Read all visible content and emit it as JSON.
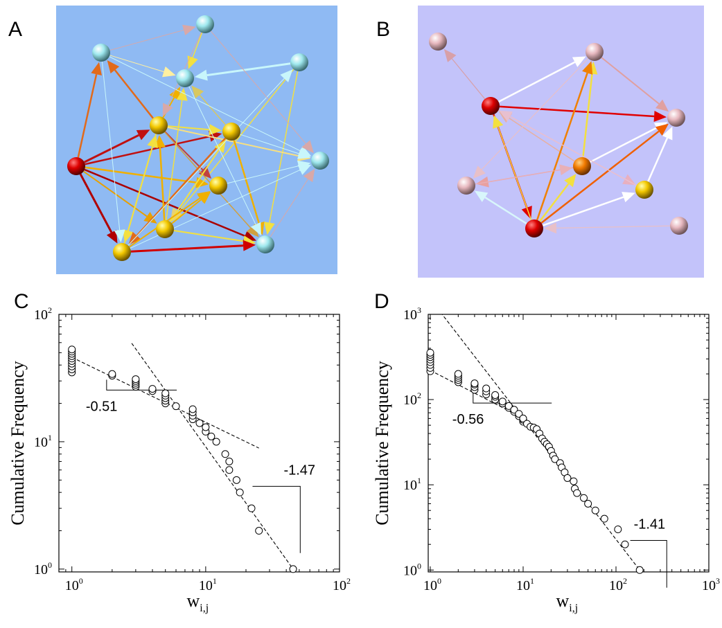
{
  "panels": {
    "a": {
      "letter": "A",
      "background": "#8fbaf3"
    },
    "b": {
      "letter": "B",
      "background": "#c3c3fa"
    },
    "c": {
      "letter": "C"
    },
    "d": {
      "letter": "D"
    }
  },
  "colors": {
    "red": "#cc0000",
    "orange": "#f07a00",
    "gold": "#f3c800",
    "cyan": "#9fe8ee",
    "pink": "#e7b8bf"
  },
  "networks": [
    {
      "id": "A",
      "nodes": [
        {
          "id": 0,
          "color": "red"
        },
        {
          "id": 1,
          "color": "cyan"
        },
        {
          "id": 2,
          "color": "cyan"
        },
        {
          "id": 3,
          "color": "cyan"
        },
        {
          "id": 4,
          "color": "cyan"
        },
        {
          "id": 5,
          "color": "gold"
        },
        {
          "id": 6,
          "color": "gold"
        },
        {
          "id": 7,
          "color": "cyan"
        },
        {
          "id": 8,
          "color": "gold"
        },
        {
          "id": 9,
          "color": "gold"
        },
        {
          "id": 10,
          "color": "gold"
        },
        {
          "id": 11,
          "color": "cyan"
        }
      ]
    },
    {
      "id": "B",
      "nodes": [
        {
          "id": 0,
          "color": "pink"
        },
        {
          "id": 1,
          "color": "pink"
        },
        {
          "id": 2,
          "color": "red"
        },
        {
          "id": 3,
          "color": "pink"
        },
        {
          "id": 4,
          "color": "orange"
        },
        {
          "id": 5,
          "color": "pink"
        },
        {
          "id": 6,
          "color": "gold"
        },
        {
          "id": 7,
          "color": "red"
        },
        {
          "id": 8,
          "color": "pink"
        }
      ]
    }
  ],
  "chart_data": [
    {
      "id": "C",
      "type": "scatter",
      "xlabel_main": "w",
      "xlabel_sub": "i,j",
      "ylabel": "Cumulative Frequency",
      "xscale": "log",
      "yscale": "log",
      "xlim": [
        0.8,
        100
      ],
      "ylim": [
        0.95,
        100
      ],
      "xticks": [
        {
          "base": "10",
          "exp": "0"
        },
        {
          "base": "10",
          "exp": "1"
        },
        {
          "base": "10",
          "exp": "2"
        }
      ],
      "yticks": [
        {
          "base": "10",
          "exp": "0"
        },
        {
          "base": "10",
          "exp": "1"
        },
        {
          "base": "10",
          "exp": "2"
        }
      ],
      "points": [
        [
          1,
          35
        ],
        [
          1,
          37
        ],
        [
          1,
          39
        ],
        [
          1,
          41
        ],
        [
          1,
          43
        ],
        [
          1,
          45
        ],
        [
          1,
          47
        ],
        [
          1,
          49
        ],
        [
          1,
          51
        ],
        [
          1,
          53
        ],
        [
          2,
          33
        ],
        [
          2,
          34
        ],
        [
          3,
          27
        ],
        [
          3,
          28
        ],
        [
          3,
          29
        ],
        [
          3,
          30
        ],
        [
          3,
          31
        ],
        [
          4,
          25
        ],
        [
          4,
          26
        ],
        [
          5,
          20
        ],
        [
          5,
          21
        ],
        [
          5,
          22
        ],
        [
          5,
          23
        ],
        [
          5,
          24
        ],
        [
          6,
          19
        ],
        [
          8,
          15
        ],
        [
          8,
          16
        ],
        [
          8,
          17
        ],
        [
          8,
          18
        ],
        [
          9,
          14
        ],
        [
          10,
          12
        ],
        [
          10,
          13
        ],
        [
          11,
          11
        ],
        [
          12,
          10
        ],
        [
          14,
          8
        ],
        [
          15,
          7
        ],
        [
          15,
          6
        ],
        [
          17,
          5
        ],
        [
          18,
          4
        ],
        [
          22,
          3
        ],
        [
          25,
          2
        ],
        [
          45,
          1
        ]
      ],
      "fit_lines": [
        {
          "slope": -0.51,
          "label": "-0.51",
          "x_range": [
            1,
            25
          ],
          "anchor": [
            1,
            46
          ]
        },
        {
          "slope": -1.47,
          "label": "-1.47",
          "x_range": [
            2.8,
            45
          ],
          "anchor": [
            45,
            1
          ]
        }
      ]
    },
    {
      "id": "D",
      "type": "scatter",
      "xlabel_main": "w",
      "xlabel_sub": "i,j",
      "ylabel": "Cumulative Frequency",
      "xscale": "log",
      "yscale": "log",
      "xlim": [
        0.95,
        1000
      ],
      "ylim": [
        0.95,
        1000
      ],
      "xticks": [
        {
          "base": "10",
          "exp": "0"
        },
        {
          "base": "10",
          "exp": "1"
        },
        {
          "base": "10",
          "exp": "2"
        },
        {
          "base": "10",
          "exp": "3"
        }
      ],
      "yticks": [
        {
          "base": "10",
          "exp": "0"
        },
        {
          "base": "10",
          "exp": "1"
        },
        {
          "base": "10",
          "exp": "2"
        },
        {
          "base": "10",
          "exp": "3"
        }
      ],
      "points": [
        [
          1,
          215
        ],
        [
          1,
          235
        ],
        [
          1,
          255
        ],
        [
          1,
          275
        ],
        [
          1,
          295
        ],
        [
          1,
          315
        ],
        [
          1,
          335
        ],
        [
          1,
          355
        ],
        [
          2,
          160
        ],
        [
          2,
          170
        ],
        [
          2,
          180
        ],
        [
          2,
          190
        ],
        [
          2,
          200
        ],
        [
          3,
          130
        ],
        [
          3,
          140
        ],
        [
          3,
          150
        ],
        [
          3,
          155
        ],
        [
          4,
          115
        ],
        [
          4,
          125
        ],
        [
          4,
          135
        ],
        [
          5,
          100
        ],
        [
          5,
          108
        ],
        [
          5,
          113
        ],
        [
          6,
          90
        ],
        [
          6,
          95
        ],
        [
          7,
          80
        ],
        [
          7,
          84
        ],
        [
          8,
          72
        ],
        [
          8,
          76
        ],
        [
          9,
          64
        ],
        [
          9,
          68
        ],
        [
          10,
          55
        ],
        [
          10,
          58
        ],
        [
          10,
          60
        ],
        [
          11,
          52
        ],
        [
          12,
          48
        ],
        [
          13,
          47
        ],
        [
          14,
          45
        ],
        [
          15,
          40
        ],
        [
          16,
          35
        ],
        [
          17,
          32
        ],
        [
          18,
          30
        ],
        [
          19,
          28
        ],
        [
          20,
          25
        ],
        [
          21,
          22
        ],
        [
          22,
          20
        ],
        [
          25,
          18
        ],
        [
          26,
          16
        ],
        [
          28,
          14
        ],
        [
          30,
          12
        ],
        [
          35,
          11
        ],
        [
          36,
          9
        ],
        [
          38,
          8
        ],
        [
          45,
          7
        ],
        [
          50,
          6
        ],
        [
          60,
          5
        ],
        [
          75,
          4
        ],
        [
          105,
          3
        ],
        [
          125,
          2
        ],
        [
          180,
          1
        ]
      ],
      "fit_lines": [
        {
          "slope": -0.56,
          "label": "-0.56",
          "x_range": [
            1,
            9
          ],
          "anchor": [
            1,
            220
          ]
        },
        {
          "slope": -1.41,
          "label": "-1.41",
          "x_range": [
            1,
            200
          ],
          "anchor": [
            180,
            1
          ]
        }
      ]
    }
  ]
}
